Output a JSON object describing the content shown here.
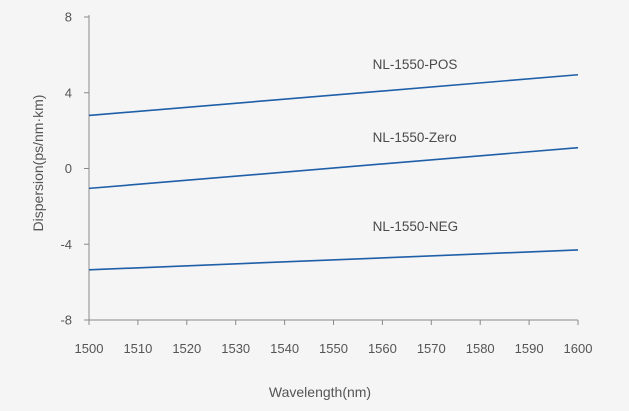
{
  "chart_data": {
    "type": "line",
    "title": "",
    "xlabel": "Wavelength(nm)",
    "ylabel": "Dispersion(ps/nm·km)",
    "xlim": [
      1500,
      1600
    ],
    "ylim": [
      -8,
      8
    ],
    "x_ticks": [
      1500,
      1510,
      1520,
      1530,
      1540,
      1550,
      1560,
      1570,
      1580,
      1590,
      1600
    ],
    "y_ticks": [
      8,
      4,
      0,
      -4,
      -8
    ],
    "grid": false,
    "legend": "inline labels above lines",
    "line_color": "#1f5fa8",
    "background_color": "#f5f5f5",
    "series": [
      {
        "name": "NL-1550-POS",
        "x": [
          1500,
          1600
        ],
        "y": [
          2.8,
          4.95
        ],
        "label_x": 1558,
        "label_y": 5.25
      },
      {
        "name": "NL-1550-Zero",
        "x": [
          1500,
          1600
        ],
        "y": [
          -1.05,
          1.1
        ],
        "label_x": 1558,
        "label_y": 1.4
      },
      {
        "name": "NL-1550-NEG",
        "x": [
          1500,
          1600
        ],
        "y": [
          -5.35,
          -4.3
        ],
        "label_x": 1558,
        "label_y": -3.3
      }
    ]
  }
}
